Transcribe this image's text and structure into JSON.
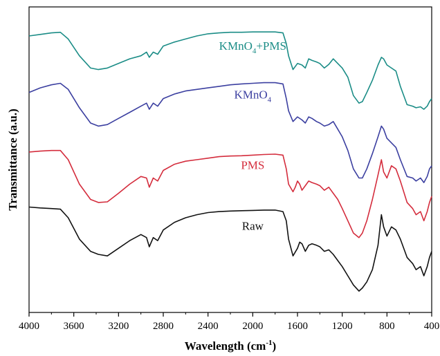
{
  "chart_data": {
    "type": "line",
    "title": "",
    "xlabel": "Wavelength",
    "xlabel_unit_base": "cm",
    "xlabel_unit_exp": "-1",
    "ylabel": "Transmittance (a.u.)",
    "xlim": [
      4000,
      400
    ],
    "x_reversed": true,
    "xticks": [
      "4000",
      "3600",
      "3200",
      "2800",
      "2400",
      "2000",
      "1600",
      "1200",
      "800",
      "400"
    ],
    "y_ticks_shown": false,
    "grid": false,
    "legend": "inline labels",
    "series": [
      {
        "name": "KMnO4+PMS",
        "label_main": "KMnO",
        "label_sub": "4",
        "label_tail": "+PMS",
        "color": "#1a8c86",
        "points": [
          [
            4000,
            0.905
          ],
          [
            3900,
            0.91
          ],
          [
            3800,
            0.915
          ],
          [
            3720,
            0.917
          ],
          [
            3650,
            0.895
          ],
          [
            3550,
            0.84
          ],
          [
            3450,
            0.8
          ],
          [
            3380,
            0.795
          ],
          [
            3300,
            0.8
          ],
          [
            3200,
            0.815
          ],
          [
            3100,
            0.83
          ],
          [
            3000,
            0.84
          ],
          [
            2950,
            0.852
          ],
          [
            2925,
            0.835
          ],
          [
            2890,
            0.852
          ],
          [
            2850,
            0.845
          ],
          [
            2800,
            0.872
          ],
          [
            2700,
            0.885
          ],
          [
            2600,
            0.895
          ],
          [
            2500,
            0.905
          ],
          [
            2400,
            0.912
          ],
          [
            2300,
            0.915
          ],
          [
            2200,
            0.917
          ],
          [
            2100,
            0.917
          ],
          [
            2000,
            0.918
          ],
          [
            1900,
            0.918
          ],
          [
            1800,
            0.918
          ],
          [
            1730,
            0.915
          ],
          [
            1700,
            0.88
          ],
          [
            1680,
            0.84
          ],
          [
            1640,
            0.795
          ],
          [
            1600,
            0.815
          ],
          [
            1560,
            0.81
          ],
          [
            1530,
            0.8
          ],
          [
            1500,
            0.83
          ],
          [
            1470,
            0.825
          ],
          [
            1430,
            0.82
          ],
          [
            1400,
            0.815
          ],
          [
            1360,
            0.8
          ],
          [
            1320,
            0.812
          ],
          [
            1280,
            0.83
          ],
          [
            1240,
            0.815
          ],
          [
            1200,
            0.8
          ],
          [
            1150,
            0.77
          ],
          [
            1100,
            0.71
          ],
          [
            1050,
            0.685
          ],
          [
            1020,
            0.69
          ],
          [
            980,
            0.72
          ],
          [
            930,
            0.76
          ],
          [
            880,
            0.81
          ],
          [
            850,
            0.835
          ],
          [
            830,
            0.83
          ],
          [
            800,
            0.81
          ],
          [
            760,
            0.8
          ],
          [
            720,
            0.79
          ],
          [
            680,
            0.74
          ],
          [
            620,
            0.68
          ],
          [
            570,
            0.675
          ],
          [
            540,
            0.67
          ],
          [
            500,
            0.673
          ],
          [
            470,
            0.665
          ],
          [
            440,
            0.675
          ],
          [
            420,
            0.69
          ],
          [
            400,
            0.7
          ]
        ]
      },
      {
        "name": "KMnO4",
        "label_main": "KMnO",
        "label_sub": "4",
        "label_tail": "",
        "color": "#3b3fa0",
        "points": [
          [
            4000,
            0.72
          ],
          [
            3900,
            0.735
          ],
          [
            3800,
            0.745
          ],
          [
            3720,
            0.75
          ],
          [
            3650,
            0.73
          ],
          [
            3550,
            0.67
          ],
          [
            3450,
            0.62
          ],
          [
            3380,
            0.61
          ],
          [
            3300,
            0.615
          ],
          [
            3200,
            0.635
          ],
          [
            3100,
            0.655
          ],
          [
            3000,
            0.675
          ],
          [
            2950,
            0.685
          ],
          [
            2925,
            0.665
          ],
          [
            2890,
            0.685
          ],
          [
            2850,
            0.675
          ],
          [
            2800,
            0.7
          ],
          [
            2700,
            0.715
          ],
          [
            2600,
            0.725
          ],
          [
            2500,
            0.73
          ],
          [
            2400,
            0.735
          ],
          [
            2300,
            0.74
          ],
          [
            2200,
            0.745
          ],
          [
            2100,
            0.748
          ],
          [
            2000,
            0.75
          ],
          [
            1900,
            0.752
          ],
          [
            1800,
            0.752
          ],
          [
            1730,
            0.748
          ],
          [
            1700,
            0.7
          ],
          [
            1680,
            0.66
          ],
          [
            1640,
            0.625
          ],
          [
            1600,
            0.64
          ],
          [
            1560,
            0.63
          ],
          [
            1530,
            0.62
          ],
          [
            1500,
            0.64
          ],
          [
            1470,
            0.635
          ],
          [
            1430,
            0.625
          ],
          [
            1400,
            0.62
          ],
          [
            1360,
            0.61
          ],
          [
            1320,
            0.615
          ],
          [
            1280,
            0.625
          ],
          [
            1240,
            0.6
          ],
          [
            1200,
            0.575
          ],
          [
            1150,
            0.53
          ],
          [
            1100,
            0.47
          ],
          [
            1050,
            0.44
          ],
          [
            1020,
            0.44
          ],
          [
            980,
            0.47
          ],
          [
            930,
            0.52
          ],
          [
            880,
            0.575
          ],
          [
            850,
            0.61
          ],
          [
            830,
            0.6
          ],
          [
            800,
            0.57
          ],
          [
            760,
            0.555
          ],
          [
            720,
            0.54
          ],
          [
            680,
            0.5
          ],
          [
            620,
            0.445
          ],
          [
            570,
            0.44
          ],
          [
            540,
            0.43
          ],
          [
            500,
            0.44
          ],
          [
            470,
            0.425
          ],
          [
            440,
            0.445
          ],
          [
            420,
            0.47
          ],
          [
            400,
            0.48
          ]
        ]
      },
      {
        "name": "PMS",
        "label_main": "PMS",
        "label_sub": "",
        "label_tail": "",
        "color": "#d42c3c",
        "points": [
          [
            4000,
            0.525
          ],
          [
            3900,
            0.528
          ],
          [
            3800,
            0.53
          ],
          [
            3720,
            0.53
          ],
          [
            3650,
            0.5
          ],
          [
            3550,
            0.42
          ],
          [
            3450,
            0.37
          ],
          [
            3380,
            0.36
          ],
          [
            3300,
            0.362
          ],
          [
            3200,
            0.39
          ],
          [
            3100,
            0.42
          ],
          [
            3000,
            0.445
          ],
          [
            2950,
            0.44
          ],
          [
            2925,
            0.41
          ],
          [
            2890,
            0.44
          ],
          [
            2850,
            0.43
          ],
          [
            2800,
            0.465
          ],
          [
            2700,
            0.485
          ],
          [
            2600,
            0.495
          ],
          [
            2500,
            0.5
          ],
          [
            2400,
            0.505
          ],
          [
            2300,
            0.51
          ],
          [
            2200,
            0.512
          ],
          [
            2100,
            0.513
          ],
          [
            2000,
            0.515
          ],
          [
            1900,
            0.517
          ],
          [
            1800,
            0.518
          ],
          [
            1730,
            0.515
          ],
          [
            1700,
            0.47
          ],
          [
            1680,
            0.42
          ],
          [
            1640,
            0.395
          ],
          [
            1620,
            0.41
          ],
          [
            1600,
            0.43
          ],
          [
            1580,
            0.42
          ],
          [
            1560,
            0.4
          ],
          [
            1530,
            0.415
          ],
          [
            1500,
            0.43
          ],
          [
            1470,
            0.425
          ],
          [
            1430,
            0.42
          ],
          [
            1400,
            0.415
          ],
          [
            1360,
            0.4
          ],
          [
            1320,
            0.41
          ],
          [
            1280,
            0.39
          ],
          [
            1240,
            0.37
          ],
          [
            1200,
            0.34
          ],
          [
            1150,
            0.3
          ],
          [
            1100,
            0.26
          ],
          [
            1050,
            0.245
          ],
          [
            1020,
            0.26
          ],
          [
            980,
            0.3
          ],
          [
            930,
            0.37
          ],
          [
            880,
            0.45
          ],
          [
            850,
            0.5
          ],
          [
            830,
            0.46
          ],
          [
            800,
            0.44
          ],
          [
            760,
            0.48
          ],
          [
            720,
            0.47
          ],
          [
            680,
            0.43
          ],
          [
            620,
            0.36
          ],
          [
            570,
            0.34
          ],
          [
            540,
            0.32
          ],
          [
            500,
            0.33
          ],
          [
            470,
            0.3
          ],
          [
            440,
            0.33
          ],
          [
            420,
            0.36
          ],
          [
            400,
            0.38
          ]
        ]
      },
      {
        "name": "Raw",
        "label_main": "Raw",
        "label_sub": "",
        "label_tail": "",
        "color": "#111111",
        "points": [
          [
            4000,
            0.345
          ],
          [
            3900,
            0.342
          ],
          [
            3800,
            0.34
          ],
          [
            3720,
            0.338
          ],
          [
            3650,
            0.31
          ],
          [
            3550,
            0.24
          ],
          [
            3450,
            0.2
          ],
          [
            3380,
            0.19
          ],
          [
            3300,
            0.185
          ],
          [
            3200,
            0.21
          ],
          [
            3100,
            0.235
          ],
          [
            3000,
            0.255
          ],
          [
            2950,
            0.245
          ],
          [
            2925,
            0.215
          ],
          [
            2890,
            0.245
          ],
          [
            2850,
            0.235
          ],
          [
            2800,
            0.27
          ],
          [
            2700,
            0.295
          ],
          [
            2600,
            0.31
          ],
          [
            2500,
            0.32
          ],
          [
            2400,
            0.327
          ],
          [
            2300,
            0.33
          ],
          [
            2200,
            0.332
          ],
          [
            2100,
            0.333
          ],
          [
            2000,
            0.334
          ],
          [
            1900,
            0.335
          ],
          [
            1800,
            0.335
          ],
          [
            1730,
            0.33
          ],
          [
            1700,
            0.3
          ],
          [
            1680,
            0.24
          ],
          [
            1640,
            0.185
          ],
          [
            1600,
            0.21
          ],
          [
            1580,
            0.23
          ],
          [
            1560,
            0.225
          ],
          [
            1530,
            0.2
          ],
          [
            1500,
            0.22
          ],
          [
            1470,
            0.225
          ],
          [
            1430,
            0.22
          ],
          [
            1400,
            0.215
          ],
          [
            1360,
            0.2
          ],
          [
            1320,
            0.205
          ],
          [
            1280,
            0.19
          ],
          [
            1240,
            0.17
          ],
          [
            1200,
            0.15
          ],
          [
            1150,
            0.12
          ],
          [
            1100,
            0.09
          ],
          [
            1050,
            0.07
          ],
          [
            1020,
            0.08
          ],
          [
            980,
            0.1
          ],
          [
            930,
            0.14
          ],
          [
            880,
            0.22
          ],
          [
            850,
            0.32
          ],
          [
            830,
            0.28
          ],
          [
            800,
            0.25
          ],
          [
            760,
            0.28
          ],
          [
            720,
            0.27
          ],
          [
            680,
            0.24
          ],
          [
            620,
            0.18
          ],
          [
            570,
            0.16
          ],
          [
            540,
            0.14
          ],
          [
            500,
            0.15
          ],
          [
            470,
            0.12
          ],
          [
            440,
            0.15
          ],
          [
            420,
            0.18
          ],
          [
            400,
            0.2
          ]
        ]
      }
    ]
  }
}
